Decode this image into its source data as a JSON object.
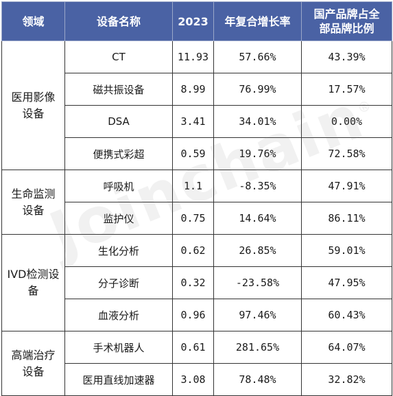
{
  "headers": {
    "domain": "领域",
    "device_name": "设备名称",
    "year": "2023",
    "cagr": "年复合增长率",
    "domestic_share_line1": "国产品牌占全",
    "domestic_share_line2": "部品牌比例"
  },
  "groups": [
    {
      "domain_line1": "医用影像",
      "domain_line2": "设备",
      "rows": [
        {
          "name": "CT",
          "value_2023": "11.93",
          "cagr": "57.66%",
          "domestic_share": "43.39%"
        },
        {
          "name": "磁共振设备",
          "value_2023": "8.99",
          "cagr": "76.99%",
          "domestic_share": "17.57%"
        },
        {
          "name": "DSA",
          "value_2023": "3.41",
          "cagr": "34.01%",
          "domestic_share": "0.00%"
        },
        {
          "name": "便携式彩超",
          "value_2023": "0.59",
          "cagr": "19.76%",
          "domestic_share": "72.58%"
        }
      ]
    },
    {
      "domain_line1": "生命监测",
      "domain_line2": "设备",
      "rows": [
        {
          "name": "呼吸机",
          "value_2023": "1.1",
          "cagr": "-8.35%",
          "domestic_share": "47.91%"
        },
        {
          "name": "监护仪",
          "value_2023": "0.75",
          "cagr": "14.64%",
          "domestic_share": "86.11%"
        }
      ]
    },
    {
      "domain_line1": "IVD检测设",
      "domain_line2": "备",
      "rows": [
        {
          "name": "生化分析",
          "value_2023": "0.62",
          "cagr": "26.85%",
          "domestic_share": "59.01%"
        },
        {
          "name": "分子诊断",
          "value_2023": "0.32",
          "cagr": "-23.58%",
          "domestic_share": "47.95%"
        },
        {
          "name": "血液分析",
          "value_2023": "0.96",
          "cagr": "97.46%",
          "domestic_share": "60.43%"
        }
      ]
    },
    {
      "domain_line1": "高端治疗",
      "domain_line2": "设备",
      "rows": [
        {
          "name": "手术机器人",
          "value_2023": "0.61",
          "cagr": "281.65%",
          "domestic_share": "64.07%"
        },
        {
          "name": "医用直线加速器",
          "value_2023": "3.08",
          "cagr": "78.48%",
          "domestic_share": "32.82%"
        }
      ]
    }
  ],
  "watermark": {
    "text": "Joinchain",
    "mark": "®"
  }
}
